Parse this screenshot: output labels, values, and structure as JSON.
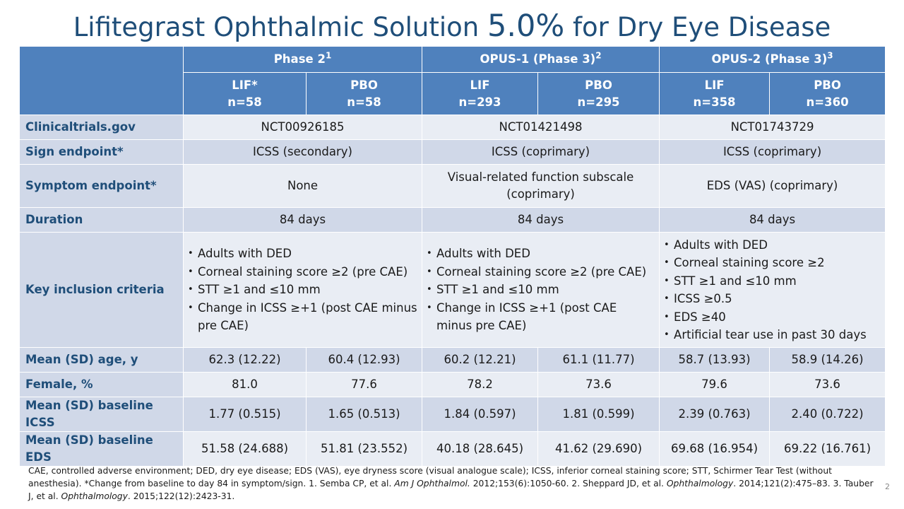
{
  "title": {
    "pre": "Lifitegrast Ophthalmic Solution ",
    "pct": "5.0%",
    "post": " for Dry Eye Disease"
  },
  "header": {
    "studies": [
      {
        "name": "Phase 2",
        "sup": "1"
      },
      {
        "name": "OPUS-1 (Phase 3)",
        "sup": "2"
      },
      {
        "name": "OPUS-2 (Phase 3)",
        "sup": "3"
      }
    ],
    "arms": [
      {
        "label": "LIF*",
        "n": "n=58"
      },
      {
        "label": "PBO",
        "n": "n=58"
      },
      {
        "label": "LIF",
        "n": "n=293"
      },
      {
        "label": "PBO",
        "n": "n=295"
      },
      {
        "label": "LIF",
        "n": "n=358"
      },
      {
        "label": "PBO",
        "n": "n=360"
      }
    ]
  },
  "rows": {
    "trials": {
      "label": "Clinicaltrials.gov",
      "values": [
        "NCT00926185",
        "NCT01421498",
        "NCT01743729"
      ]
    },
    "sign": {
      "label": "Sign endpoint*",
      "values": [
        "ICSS (secondary)",
        "ICSS (coprimary)",
        "ICSS (coprimary)"
      ]
    },
    "symptom": {
      "label": "Symptom endpoint*",
      "values": [
        "None",
        "Visual-related function subscale (coprimary)",
        "EDS (VAS) (coprimary)"
      ]
    },
    "duration": {
      "label": "Duration",
      "values": [
        "84 days",
        "84 days",
        "84 days"
      ]
    },
    "inclusion": {
      "label": "Key inclusion criteria",
      "phase2": [
        "Adults with DED",
        "Corneal staining score ≥2 (pre CAE)",
        "STT ≥1 and ≤10 mm",
        "Change in ICSS ≥+1 (post CAE minus pre CAE)"
      ],
      "opus1": [
        "Adults with DED",
        "Corneal staining score ≥2 (pre CAE)",
        "STT ≥1 and ≤10 mm",
        "Change in ICSS ≥+1 (post CAE minus pre CAE)"
      ],
      "opus2": [
        "Adults with DED",
        "Corneal staining score ≥2",
        "STT ≥1 and ≤10 mm",
        "ICSS ≥0.5",
        "EDS ≥40",
        "Artificial tear use in past 30 days"
      ]
    },
    "age": {
      "label": "Mean (SD) age, y",
      "values": [
        "62.3 (12.22)",
        "60.4 (12.93)",
        "60.2 (12.21)",
        "61.1 (11.77)",
        "58.7 (13.93)",
        "58.9 (14.26)"
      ]
    },
    "female": {
      "label": "Female, %",
      "values": [
        "81.0",
        "77.6",
        "78.2",
        "73.6",
        "79.6",
        "73.6"
      ]
    },
    "icss": {
      "label": "Mean (SD) baseline ICSS",
      "values": [
        "1.77 (0.515)",
        "1.65 (0.513)",
        "1.84 (0.597)",
        "1.81 (0.599)",
        "2.39 (0.763)",
        "2.40 (0.722)"
      ]
    },
    "eds": {
      "label": "Mean (SD) baseline EDS",
      "values": [
        "51.58 (24.688)",
        "51.81 (23.552)",
        "40.18 (28.645)",
        "41.62 (29.690)",
        "69.68 (16.954)",
        "69.22 (16.761)"
      ]
    }
  },
  "footnote": {
    "t1": "CAE, controlled adverse environment; DED, dry eye disease; EDS (VAS), eye dryness score (visual analogue scale); ICSS, inferior corneal staining score; STT, Schirmer Tear Test (without anesthesia). *Change from baseline to day 84 in symptom/sign. 1. Semba CP, et al. ",
    "j1": "Am J Ophthalmol.",
    "t2": " 2012;153(6):1050-60. 2. Sheppard JD, et al. ",
    "j2": "Ophthalmology",
    "t3": ". 2014;121(2):475–83. 3. Tauber J, et al. ",
    "j3": "Ophthalmology",
    "t4": ". 2015;122(12):2423-31."
  },
  "page_number": "2",
  "colors": {
    "title": "#1F4E79",
    "header_bg": "#4F81BD",
    "band_dark": "#D0D8E8",
    "band_light": "#E9EDF4",
    "label_text": "#1F4E79"
  }
}
